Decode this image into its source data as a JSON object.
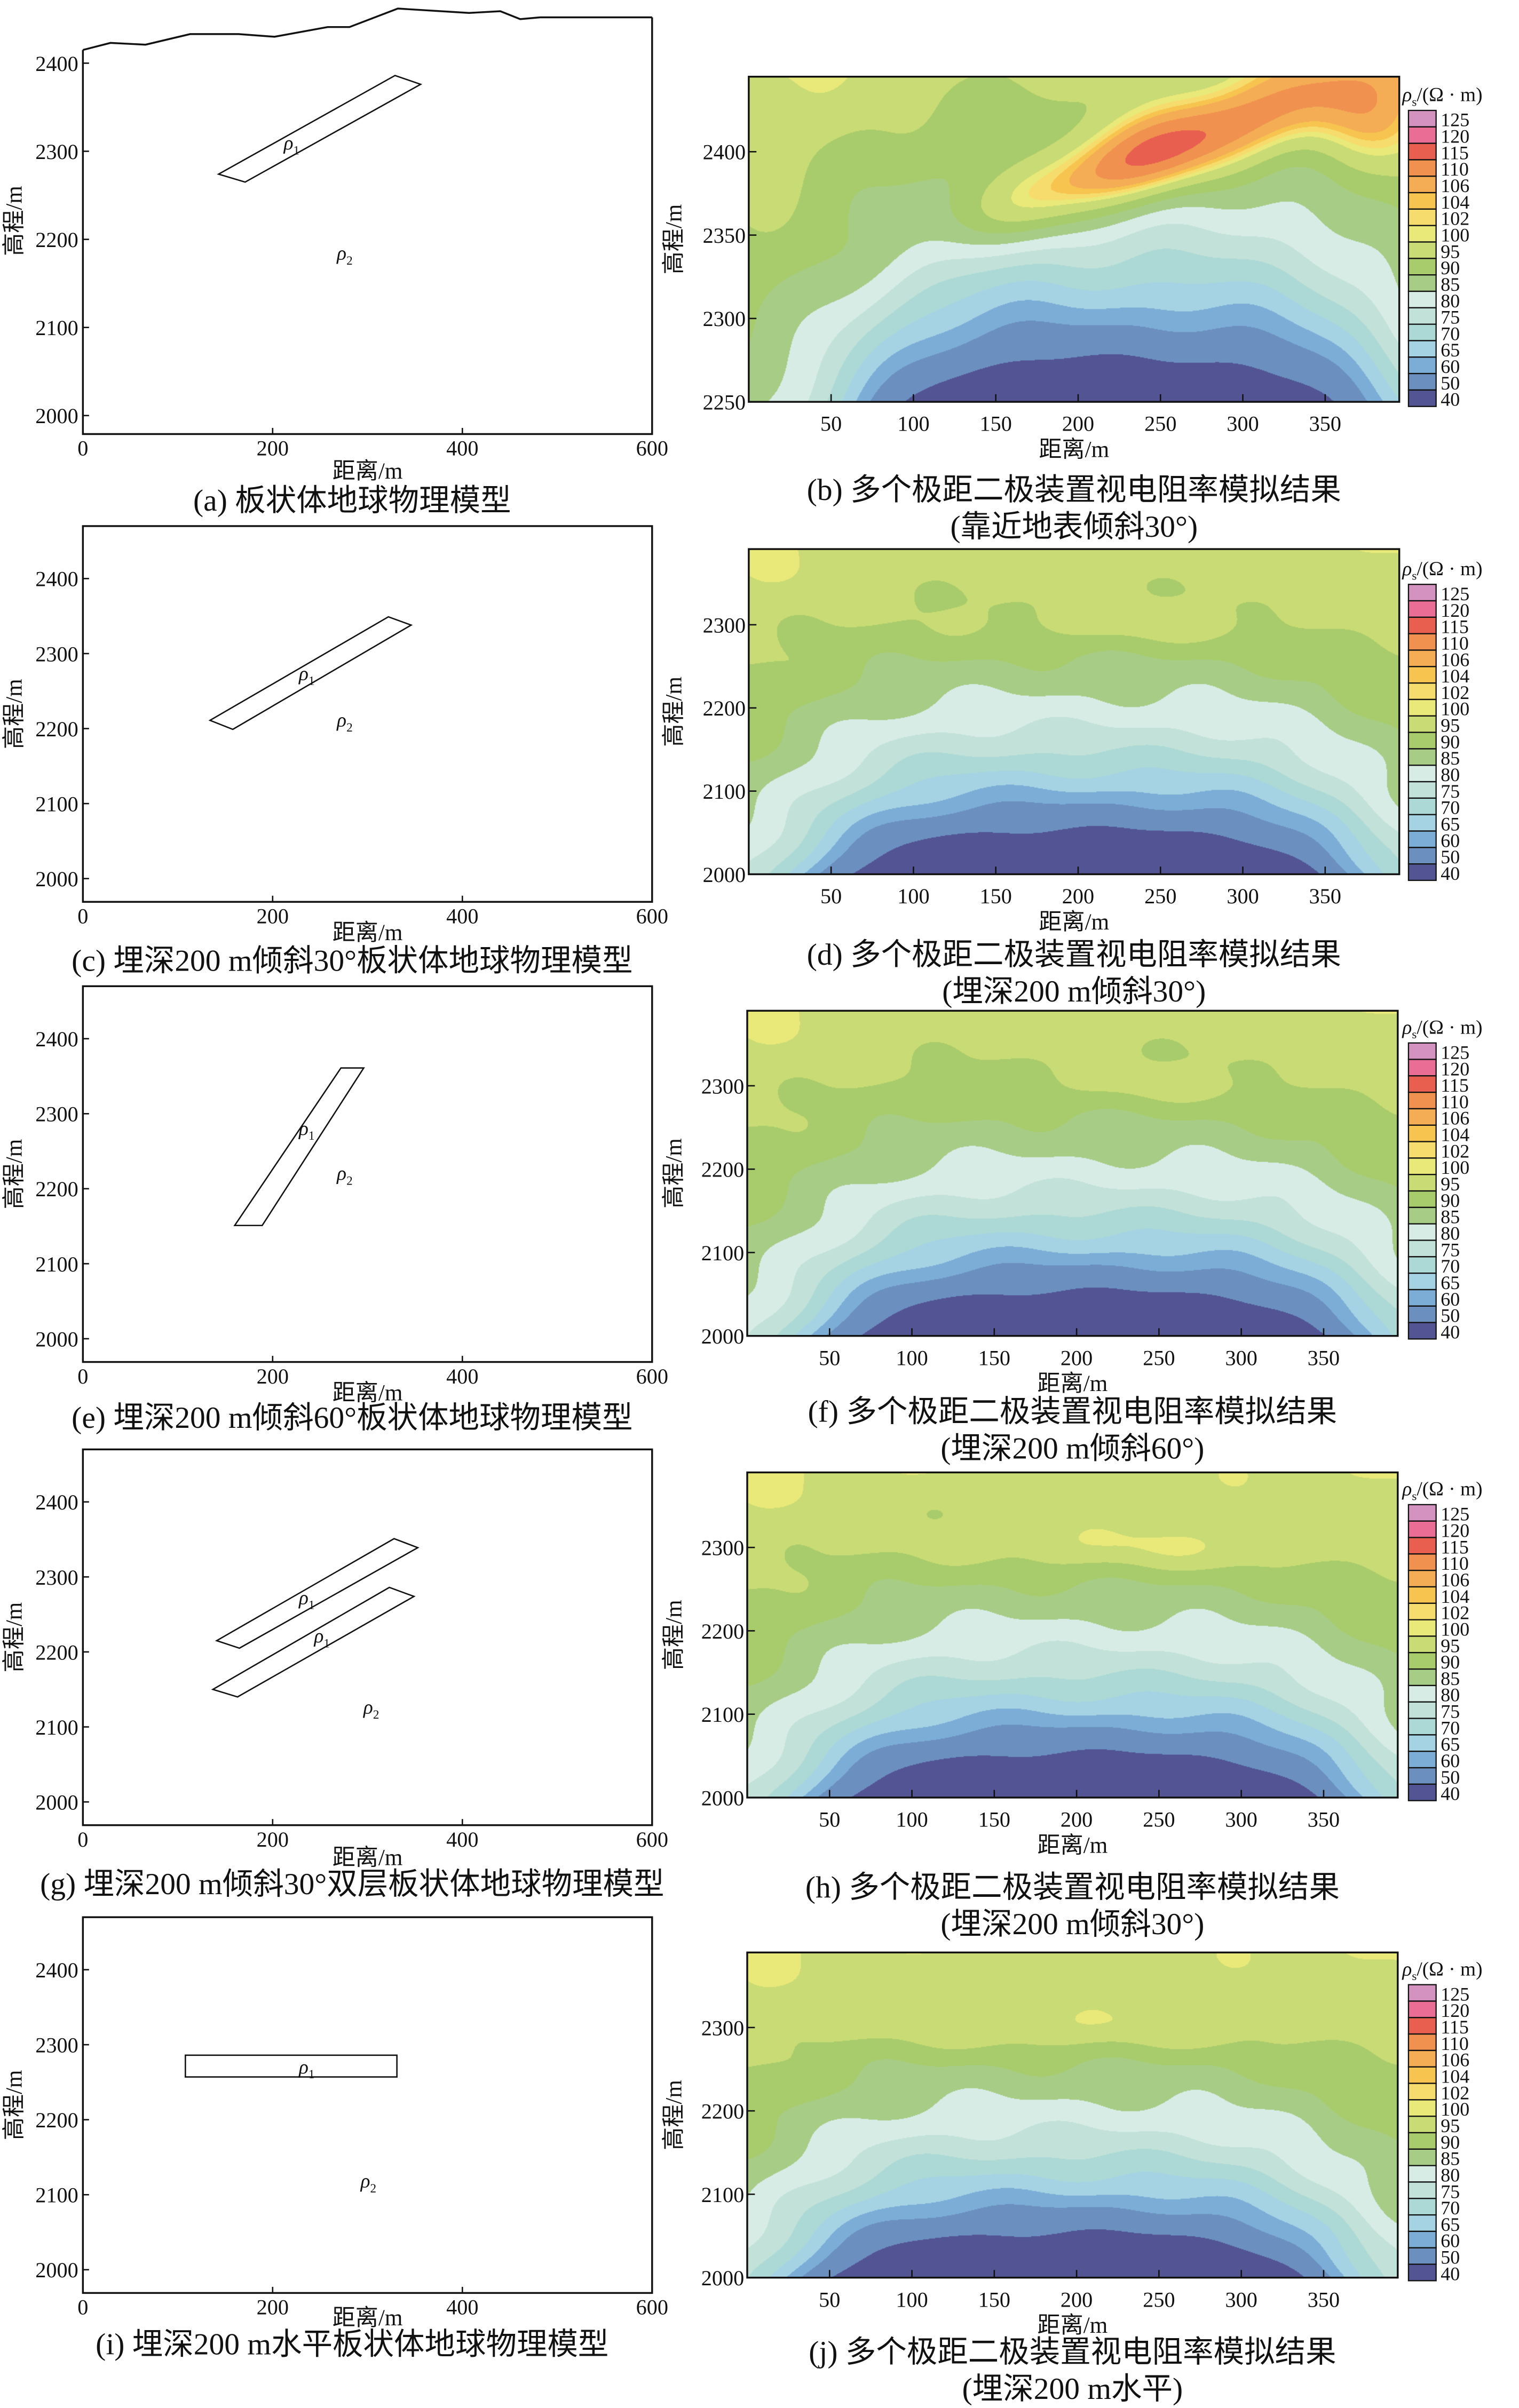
{
  "colorbar": {
    "title": {
      "symbol": "ρ",
      "sub": "s",
      "unit": "/(Ω · m)"
    },
    "levels": [
      40,
      50,
      60,
      65,
      70,
      75,
      80,
      85,
      90,
      95,
      100,
      102,
      104,
      106,
      110,
      115,
      120,
      125
    ],
    "colors": [
      "#525494",
      "#6b8fbe",
      "#7badd6",
      "#a5d3e3",
      "#acd9d6",
      "#c2e1d8",
      "#d8ece6",
      "#a7cc86",
      "#a8cc6c",
      "#c9db74",
      "#e9e97a",
      "#f6dc6c",
      "#f7c44f",
      "#f4ad55",
      "#f0914f",
      "#e85e4f",
      "#e96d94",
      "#d392bf"
    ]
  },
  "chart_data": [
    {
      "panel": "a",
      "type": "model",
      "caption": "(a) 板状体地球物理模型",
      "xlabel": "距离/m",
      "ylabel": "高程/m",
      "xlim": [
        0,
        600
      ],
      "ylim": [
        1979,
        2463
      ],
      "xticks": [
        0,
        200,
        400,
        600
      ],
      "yticks": [
        2000,
        2100,
        2200,
        2300,
        2400
      ],
      "surface": [
        [
          0,
          2415
        ],
        [
          29,
          2423
        ],
        [
          66,
          2421
        ],
        [
          113,
          2433
        ],
        [
          164,
          2433
        ],
        [
          202,
          2430
        ],
        [
          258,
          2441
        ],
        [
          281,
          2441
        ],
        [
          332,
          2462
        ],
        [
          407,
          2457
        ],
        [
          440,
          2459
        ],
        [
          461,
          2450
        ],
        [
          482,
          2452
        ],
        [
          600,
          2452
        ]
      ],
      "bodies": [
        {
          "label": {
            "symbol": "ρ",
            "sub": "1"
          },
          "polygon": [
            [
              143,
              2274
            ],
            [
              171,
              2265
            ],
            [
              356,
              2376
            ],
            [
              329,
              2386
            ]
          ],
          "label_at": [
            220,
            2309
          ]
        }
      ],
      "host": {
        "label": {
          "symbol": "ρ",
          "sub": "2"
        },
        "label_at": [
          276,
          2184
        ]
      }
    },
    {
      "panel": "b",
      "type": "contour",
      "caption": [
        "(b) 多个极距二极装置视电阻率模拟结果",
        "(靠近地表倾斜30°)"
      ],
      "xlabel": "距离/m",
      "ylabel": "高程/m",
      "xlim": [
        0,
        395
      ],
      "ylim": [
        2250,
        2445
      ],
      "xticks": [
        50,
        100,
        150,
        200,
        250,
        300,
        350
      ],
      "yticks": [
        2250,
        2300,
        2350,
        2400
      ],
      "field_model": {
        "base_top": 100.5,
        "base_bottom": 88,
        "highs": [
          {
            "x": 245,
            "z": 2398,
            "amp": 27,
            "sx": 115,
            "sz": 24,
            "rot_deg": 20
          },
          {
            "x": 375,
            "z": 2420,
            "amp": 9,
            "sx": 35,
            "sz": 30,
            "rot_deg": 0
          }
        ],
        "low": {
          "x": 225,
          "amp": 55,
          "sx": 165,
          "hz": 80
        }
      }
    },
    {
      "panel": "c",
      "type": "model",
      "caption": "(c) 埋深200 m倾斜30°板状体地球物理模型",
      "xlabel": "距离/m",
      "ylabel": "高程/m",
      "xlim": [
        0,
        600
      ],
      "ylim": [
        1969,
        2470
      ],
      "xticks": [
        0,
        200,
        400,
        600
      ],
      "yticks": [
        2000,
        2100,
        2200,
        2300,
        2400
      ],
      "bodies": [
        {
          "label": {
            "symbol": "ρ",
            "sub": "1"
          },
          "polygon": [
            [
              134,
              2211
            ],
            [
              158,
              2199
            ],
            [
              346,
              2338
            ],
            [
              322,
              2349
            ]
          ],
          "label_at": [
            236,
            2273
          ]
        }
      ],
      "host": {
        "label": {
          "symbol": "ρ",
          "sub": "2"
        },
        "label_at": [
          276,
          2211
        ]
      }
    },
    {
      "panel": "d",
      "type": "contour",
      "caption": [
        "(d) 多个极距二极装置视电阻率模拟结果",
        "(埋深200 m倾斜30°)"
      ],
      "xlabel": "距离/m",
      "ylabel": "高程/m",
      "xlim": [
        0,
        395
      ],
      "ylim": [
        2000,
        2391
      ],
      "xticks": [
        50,
        100,
        150,
        200,
        250,
        300,
        350
      ],
      "yticks": [
        2000,
        2100,
        2200,
        2300
      ],
      "field_model": {
        "base_top": 100.6,
        "base_bottom": 87,
        "highs": [
          {
            "x": 230,
            "z": 2300,
            "amp": 4.6,
            "sx": 95,
            "sz": 28,
            "rot_deg": 0
          }
        ],
        "low": {
          "x": 205,
          "amp": 62,
          "sx": 170,
          "hz": 115
        }
      }
    },
    {
      "panel": "e",
      "type": "model",
      "caption": "(e) 埋深200 m倾斜60°板状体地球物理模型",
      "xlabel": "距离/m",
      "ylabel": "高程/m",
      "xlim": [
        0,
        600
      ],
      "ylim": [
        1969,
        2470
      ],
      "xticks": [
        0,
        200,
        400,
        600
      ],
      "yticks": [
        2000,
        2100,
        2200,
        2300,
        2400
      ],
      "bodies": [
        {
          "label": {
            "symbol": "ρ",
            "sub": "1"
          },
          "polygon": [
            [
              160,
              2151
            ],
            [
              189,
              2151
            ],
            [
              296,
              2361
            ],
            [
              272,
              2361
            ]
          ],
          "label_at": [
            236,
            2280
          ]
        }
      ],
      "host": {
        "label": {
          "symbol": "ρ",
          "sub": "2"
        },
        "label_at": [
          276,
          2220
        ]
      }
    },
    {
      "panel": "f",
      "type": "contour",
      "caption": [
        "(f) 多个极距二极装置视电阻率模拟结果",
        "(埋深200 m倾斜60°)"
      ],
      "xlabel": "距离/m",
      "ylabel": "高程/m",
      "xlim": [
        0,
        395
      ],
      "ylim": [
        2000,
        2390
      ],
      "xticks": [
        50,
        100,
        150,
        200,
        250,
        300,
        350
      ],
      "yticks": [
        2000,
        2100,
        2200,
        2300
      ],
      "field_model": {
        "base_top": 100.6,
        "base_bottom": 87,
        "highs": [
          {
            "x": 250,
            "z": 2300,
            "amp": 3.8,
            "sx": 80,
            "sz": 25,
            "rot_deg": 0
          }
        ],
        "low": {
          "x": 210,
          "amp": 62,
          "sx": 170,
          "hz": 115
        }
      }
    },
    {
      "panel": "g",
      "type": "model",
      "caption": "(g) 埋深200 m倾斜30°双层板状体地球物理模型",
      "xlabel": "距离/m",
      "ylabel": "高程/m",
      "xlim": [
        0,
        600
      ],
      "ylim": [
        1969,
        2470
      ],
      "xticks": [
        0,
        200,
        400,
        600
      ],
      "yticks": [
        2000,
        2100,
        2200,
        2300,
        2400
      ],
      "bodies": [
        {
          "label": {
            "symbol": "ρ",
            "sub": "1"
          },
          "polygon": [
            [
              141,
              2215
            ],
            [
              165,
              2205
            ],
            [
              353,
              2339
            ],
            [
              328,
              2351
            ]
          ],
          "label_at": [
            236,
            2272
          ]
        },
        {
          "label": {
            "symbol": "ρ",
            "sub": "1"
          },
          "polygon": [
            [
              137,
              2150
            ],
            [
              163,
              2140
            ],
            [
              349,
              2274
            ],
            [
              323,
              2286
            ]
          ],
          "label_at": [
            252,
            2221
          ]
        }
      ],
      "host": {
        "label": {
          "symbol": "ρ",
          "sub": "2"
        },
        "label_at": [
          304,
          2126
        ]
      }
    },
    {
      "panel": "h",
      "type": "contour",
      "caption": [
        "(h) 多个极距二极装置视电阻率模拟结果",
        "(埋深200 m倾斜30°)"
      ],
      "xlabel": "距离/m",
      "ylabel": "高程/m",
      "xlim": [
        0,
        395
      ],
      "ylim": [
        2000,
        2390
      ],
      "xticks": [
        50,
        100,
        150,
        200,
        250,
        300,
        350
      ],
      "yticks": [
        2000,
        2100,
        2200,
        2300
      ],
      "field_model": {
        "base_top": 101,
        "base_bottom": 87,
        "highs": [
          {
            "x": 240,
            "z": 2300,
            "amp": 6.5,
            "sx": 120,
            "sz": 30,
            "rot_deg": 0
          }
        ],
        "low": {
          "x": 205,
          "amp": 62,
          "sx": 170,
          "hz": 115
        }
      }
    },
    {
      "panel": "i",
      "type": "model",
      "caption": "(i) 埋深200 m水平板状体地球物理模型",
      "xlabel": "距离/m",
      "ylabel": "高程/m",
      "xlim": [
        0,
        600
      ],
      "ylim": [
        1969,
        2470
      ],
      "xticks": [
        0,
        200,
        400,
        600
      ],
      "yticks": [
        2000,
        2100,
        2200,
        2300,
        2400
      ],
      "bodies": [
        {
          "label": {
            "symbol": "ρ",
            "sub": "1"
          },
          "polygon": [
            [
              108,
              2286
            ],
            [
              331,
              2286
            ],
            [
              331,
              2257
            ],
            [
              108,
              2257
            ]
          ],
          "label_at": [
            236,
            2270
          ]
        }
      ],
      "host": {
        "label": {
          "symbol": "ρ",
          "sub": "2"
        },
        "label_at": [
          301,
          2118
        ]
      }
    },
    {
      "panel": "j",
      "type": "contour",
      "caption": [
        "(j) 多个极距二极装置视电阻率模拟结果",
        "(埋深200 m水平)"
      ],
      "xlabel": "距离/m",
      "ylabel": "高程/m",
      "xlim": [
        0,
        395
      ],
      "ylim": [
        2000,
        2390
      ],
      "xticks": [
        50,
        100,
        150,
        200,
        250,
        300,
        350
      ],
      "yticks": [
        2000,
        2100,
        2200,
        2300
      ],
      "field_model": {
        "base_top": 101,
        "base_bottom": 87,
        "highs": [
          {
            "x": 200,
            "z": 2300,
            "amp": 6,
            "sx": 140,
            "sz": 30,
            "rot_deg": 0
          }
        ],
        "low": {
          "x": 195,
          "amp": 62,
          "sx": 170,
          "hz": 115
        }
      }
    }
  ]
}
